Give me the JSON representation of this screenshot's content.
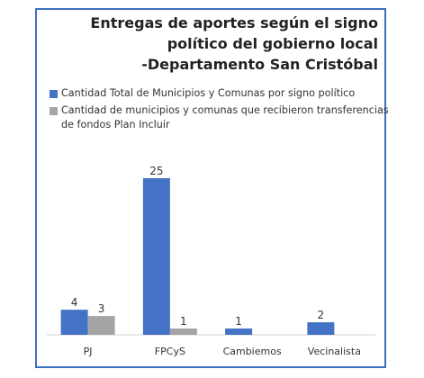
{
  "chart_data": {
    "type": "bar",
    "title_lines": [
      "Entregas de aportes según el signo",
      "político del gobierno local",
      "-Departamento San Cristóbal"
    ],
    "categories": [
      "PJ",
      "FPCyS",
      "Cambiemos",
      "Vecinalista"
    ],
    "series": [
      {
        "name": "Cantidad Total de Municipios y Comunas por signo político",
        "color": "#4472c4",
        "values": [
          4,
          25,
          1,
          2
        ]
      },
      {
        "name": "Cantidad de municipios y comunas que recibieron transferencias de fondos Plan Incluir",
        "color": "#a5a5a5",
        "values": [
          3,
          1,
          null,
          null
        ]
      }
    ],
    "ylim": [
      0,
      25
    ],
    "grid": false,
    "legend_position": "top"
  }
}
